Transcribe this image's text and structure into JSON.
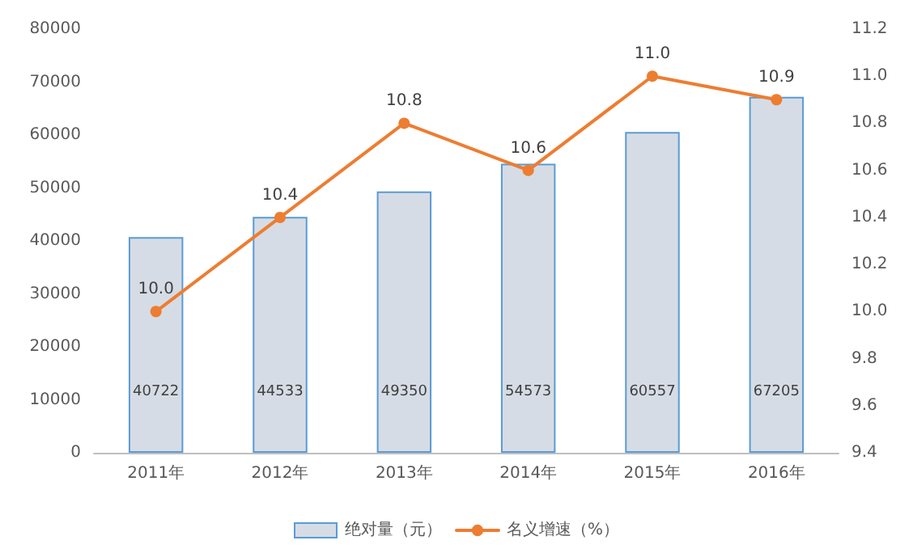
{
  "chart_data": {
    "type": "bar",
    "categories": [
      "2011年",
      "2012年",
      "2013年",
      "2014年",
      "2015年",
      "2016年"
    ],
    "series": [
      {
        "name": "绝对量（元）",
        "color": "#d6dce5",
        "values": [
          40722,
          44533,
          49350,
          54573,
          60557,
          67205
        ],
        "value_labels": [
          "40722",
          "44533",
          "49350",
          "54573",
          "60557",
          "67205"
        ]
      },
      {
        "name": "名义增速（%）",
        "type": "line",
        "axis": "y2",
        "color": "#ed7d31",
        "values": [
          10.0,
          10.4,
          10.8,
          10.6,
          11.0,
          10.9
        ],
        "value_labels": [
          "10.0",
          "10.4",
          "10.8",
          "10.6",
          "11.0",
          "10.9"
        ]
      }
    ],
    "ylim": [
      0,
      80000
    ],
    "yticks": [
      0,
      10000,
      20000,
      30000,
      40000,
      50000,
      60000,
      70000,
      80000
    ],
    "y2lim": [
      9.4,
      11.2
    ],
    "y2ticks": [
      9.4,
      9.6,
      9.8,
      {
        "value": 10,
        "label": "10.0"
      },
      10.2,
      10.4,
      10.6,
      10.8,
      {
        "value": 11,
        "label": "11.0"
      },
      11.2
    ],
    "legend": "bottom",
    "marker": "circle",
    "grid": false
  }
}
